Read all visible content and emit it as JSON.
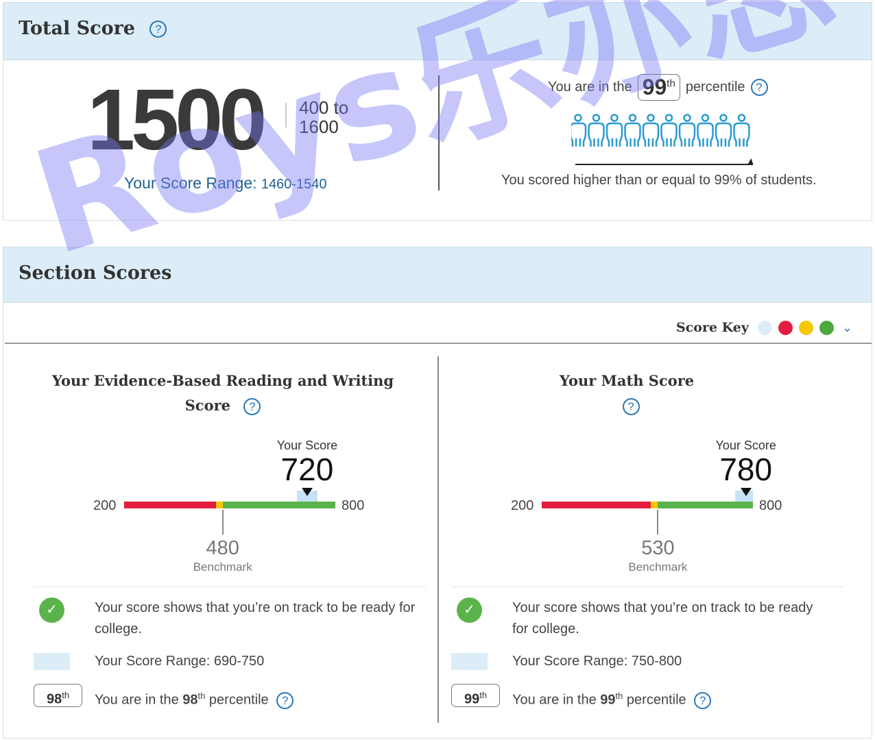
{
  "total": {
    "title": "Total Score",
    "score": "1500",
    "range_low": "400 to",
    "range_high": "1600",
    "score_range_label": "Your Score Range:",
    "score_range": "1460-1540",
    "percentile_prefix": "You are in the",
    "percentile": "99",
    "percentile_suffix_sup": "th",
    "percentile_suffix": "percentile",
    "percentile_value": 99,
    "description": "You scored higher than or equal to 99% of students.",
    "people_count": 10
  },
  "sections": {
    "title": "Section Scores",
    "score_key_label": "Score Key",
    "score_key_colors": [
      "#dcedf8",
      "#e41e3f",
      "#f6c800",
      "#4aa83c"
    ]
  },
  "colors": {
    "red": "#e41e3f",
    "yellow": "#f6c800",
    "green": "#5ab34a",
    "range": "#c6e2f6",
    "accent": "#2a78b8"
  },
  "panels": [
    {
      "title_line1": "Your Evidence-Based Reading and Writing",
      "title_line2": "Score",
      "your_score_label": "Your Score",
      "score": 720,
      "min": 200,
      "max": 800,
      "min_label": "200",
      "max_label": "800",
      "benchmark": 480,
      "benchmark_label": "480",
      "benchmark_text": "Benchmark",
      "range_low": 690,
      "range_high": 750,
      "message": "Your score shows that you’re on track to be ready for college.",
      "range_text": "Your Score Range: 690-750",
      "percentile": "98",
      "th": "th",
      "pct_prefix": "You are in the",
      "pct_suffix": "percentile"
    },
    {
      "title_line1": "Your Math Score",
      "title_line2": "",
      "your_score_label": "Your Score",
      "score": 780,
      "min": 200,
      "max": 800,
      "min_label": "200",
      "max_label": "800",
      "benchmark": 530,
      "benchmark_label": "530",
      "benchmark_text": "Benchmark",
      "range_low": 750,
      "range_high": 800,
      "message": "Your score shows that you’re on track to be ready for college.",
      "range_text": "Your Score Range: 750-800",
      "percentile": "99",
      "th": "th",
      "pct_prefix": "You are in the",
      "pct_suffix": "percentile"
    }
  ],
  "watermark": "Roys乐亦思"
}
